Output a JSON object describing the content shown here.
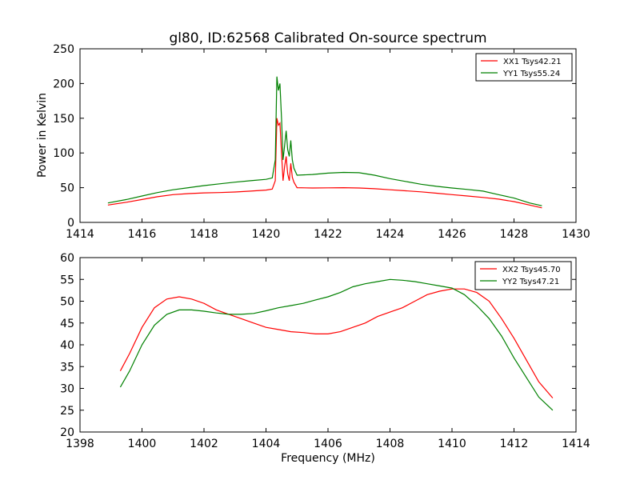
{
  "chart_data": [
    {
      "type": "line",
      "title": "gl80, ID:62568 Calibrated On-source spectrum",
      "xlabel": "",
      "ylabel": "Power in Kelvin",
      "xlim": [
        1414,
        1430
      ],
      "ylim": [
        0,
        250
      ],
      "xticks": [
        1414,
        1416,
        1418,
        1420,
        1422,
        1424,
        1426,
        1428,
        1430
      ],
      "yticks": [
        0,
        50,
        100,
        150,
        200,
        250
      ],
      "grid": false,
      "legend_position": "top-right",
      "series": [
        {
          "name": "XX1 Tsys42.21",
          "color": "#ff0000",
          "points": [
            [
              1414.9,
              25
            ],
            [
              1415.5,
              29
            ],
            [
              1416,
              33
            ],
            [
              1416.5,
              37
            ],
            [
              1417,
              40
            ],
            [
              1417.5,
              41.5
            ],
            [
              1418,
              42.5
            ],
            [
              1418.5,
              43
            ],
            [
              1419,
              43.8
            ],
            [
              1419.5,
              45
            ],
            [
              1420,
              46.5
            ],
            [
              1420.2,
              48
            ],
            [
              1420.3,
              60
            ],
            [
              1420.35,
              150
            ],
            [
              1420.4,
              140
            ],
            [
              1420.45,
              143
            ],
            [
              1420.5,
              100
            ],
            [
              1420.55,
              60
            ],
            [
              1420.6,
              80
            ],
            [
              1420.65,
              95
            ],
            [
              1420.7,
              70
            ],
            [
              1420.75,
              60
            ],
            [
              1420.8,
              85
            ],
            [
              1420.85,
              65
            ],
            [
              1420.9,
              58
            ],
            [
              1421,
              50
            ],
            [
              1421.5,
              49.5
            ],
            [
              1422,
              49.8
            ],
            [
              1422.5,
              50
            ],
            [
              1423,
              49.5
            ],
            [
              1423.5,
              48.5
            ],
            [
              1424,
              47
            ],
            [
              1424.5,
              45.5
            ],
            [
              1425,
              44
            ],
            [
              1425.5,
              42
            ],
            [
              1426,
              40
            ],
            [
              1426.5,
              38
            ],
            [
              1427,
              36
            ],
            [
              1427.5,
              33.5
            ],
            [
              1428,
              30
            ],
            [
              1428.5,
              25
            ],
            [
              1428.9,
              21
            ]
          ]
        },
        {
          "name": "YY1 Tsys55.24",
          "color": "#008000",
          "points": [
            [
              1414.9,
              28
            ],
            [
              1415.5,
              33
            ],
            [
              1416,
              38
            ],
            [
              1416.5,
              43
            ],
            [
              1417,
              47
            ],
            [
              1417.5,
              50
            ],
            [
              1418,
              53
            ],
            [
              1418.5,
              55.5
            ],
            [
              1419,
              58
            ],
            [
              1419.5,
              60
            ],
            [
              1420,
              62
            ],
            [
              1420.2,
              64
            ],
            [
              1420.3,
              90
            ],
            [
              1420.35,
              210
            ],
            [
              1420.4,
              190
            ],
            [
              1420.45,
              200
            ],
            [
              1420.5,
              150
            ],
            [
              1420.55,
              90
            ],
            [
              1420.6,
              110
            ],
            [
              1420.65,
              132
            ],
            [
              1420.7,
              105
            ],
            [
              1420.75,
              95
            ],
            [
              1420.8,
              118
            ],
            [
              1420.85,
              90
            ],
            [
              1420.9,
              78
            ],
            [
              1421,
              68
            ],
            [
              1421.5,
              69
            ],
            [
              1422,
              71
            ],
            [
              1422.5,
              72
            ],
            [
              1423,
              71.5
            ],
            [
              1423.5,
              68
            ],
            [
              1424,
              63
            ],
            [
              1424.5,
              59
            ],
            [
              1425,
              55
            ],
            [
              1425.5,
              52
            ],
            [
              1426,
              49.5
            ],
            [
              1426.5,
              47.5
            ],
            [
              1427,
              45
            ],
            [
              1427.5,
              40
            ],
            [
              1428,
              35
            ],
            [
              1428.5,
              28
            ],
            [
              1428.9,
              24
            ]
          ]
        }
      ]
    },
    {
      "type": "line",
      "title": "",
      "xlabel": "Frequency (MHz)",
      "ylabel": "",
      "xlim": [
        1398,
        1414
      ],
      "ylim": [
        20,
        60
      ],
      "xticks": [
        1398,
        1400,
        1402,
        1404,
        1406,
        1408,
        1410,
        1412,
        1414
      ],
      "yticks": [
        20,
        25,
        30,
        35,
        40,
        45,
        50,
        55,
        60
      ],
      "grid": false,
      "legend_position": "top-right",
      "series": [
        {
          "name": "XX2 Tsys45.70",
          "color": "#ff0000",
          "points": [
            [
              1399.3,
              34
            ],
            [
              1399.6,
              38
            ],
            [
              1400,
              44
            ],
            [
              1400.4,
              48.5
            ],
            [
              1400.8,
              50.5
            ],
            [
              1401.2,
              51
            ],
            [
              1401.6,
              50.5
            ],
            [
              1402,
              49.5
            ],
            [
              1402.4,
              48
            ],
            [
              1402.8,
              47
            ],
            [
              1403.2,
              46
            ],
            [
              1403.6,
              45
            ],
            [
              1404,
              44
            ],
            [
              1404.4,
              43.5
            ],
            [
              1404.8,
              43
            ],
            [
              1405.2,
              42.8
            ],
            [
              1405.6,
              42.5
            ],
            [
              1406,
              42.5
            ],
            [
              1406.4,
              43
            ],
            [
              1406.8,
              44
            ],
            [
              1407.2,
              45
            ],
            [
              1407.6,
              46.5
            ],
            [
              1408,
              47.5
            ],
            [
              1408.4,
              48.5
            ],
            [
              1408.8,
              50
            ],
            [
              1409.2,
              51.5
            ],
            [
              1409.6,
              52.3
            ],
            [
              1410,
              52.8
            ],
            [
              1410.4,
              52.8
            ],
            [
              1410.8,
              52
            ],
            [
              1411.2,
              50
            ],
            [
              1411.6,
              46
            ],
            [
              1412,
              41.5
            ],
            [
              1412.4,
              36.5
            ],
            [
              1412.8,
              31.5
            ],
            [
              1413.25,
              27.8
            ]
          ]
        },
        {
          "name": "YY2 Tsys47.21",
          "color": "#008000",
          "points": [
            [
              1399.3,
              30.3
            ],
            [
              1399.6,
              34
            ],
            [
              1400,
              40
            ],
            [
              1400.4,
              44.5
            ],
            [
              1400.8,
              47
            ],
            [
              1401.2,
              48
            ],
            [
              1401.6,
              48
            ],
            [
              1402,
              47.7
            ],
            [
              1402.4,
              47.3
            ],
            [
              1402.8,
              47
            ],
            [
              1403.2,
              47
            ],
            [
              1403.6,
              47.2
            ],
            [
              1404,
              47.8
            ],
            [
              1404.4,
              48.5
            ],
            [
              1404.8,
              49
            ],
            [
              1405.2,
              49.5
            ],
            [
              1405.6,
              50.3
            ],
            [
              1406,
              51
            ],
            [
              1406.4,
              52
            ],
            [
              1406.8,
              53.3
            ],
            [
              1407.2,
              54
            ],
            [
              1407.6,
              54.5
            ],
            [
              1408,
              55
            ],
            [
              1408.4,
              54.8
            ],
            [
              1408.8,
              54.5
            ],
            [
              1409.2,
              54
            ],
            [
              1409.6,
              53.5
            ],
            [
              1410,
              53
            ],
            [
              1410.4,
              51.5
            ],
            [
              1410.8,
              49
            ],
            [
              1411.2,
              46
            ],
            [
              1411.6,
              42
            ],
            [
              1412,
              37
            ],
            [
              1412.4,
              32.5
            ],
            [
              1412.8,
              28
            ],
            [
              1413.25,
              25
            ]
          ]
        }
      ]
    }
  ]
}
